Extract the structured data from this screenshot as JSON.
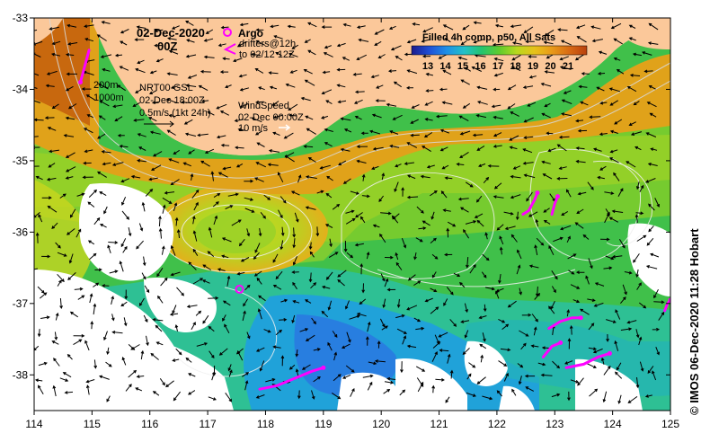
{
  "map": {
    "date_line1": "02-Dec-2020",
    "date_line2": "00Z",
    "legend": {
      "argo_label": "Argo",
      "drifters_line1": "drifters@12h",
      "drifters_line2": "to 02/12 12Z",
      "argo_color": "#ff00ff",
      "drifter_color": "#ff00ff"
    },
    "colorbar": {
      "title": "Filled 4h comp, p50, All Sats",
      "ticks": [
        "13",
        "14",
        "15",
        "16",
        "17",
        "18",
        "19",
        "20",
        "21"
      ],
      "colors": [
        "#1a1a8c",
        "#1f4fd6",
        "#1f8fe6",
        "#21c0c8",
        "#24c46e",
        "#5fcc2e",
        "#b8d81e",
        "#e6c21a",
        "#e89a18",
        "#d86a14",
        "#b8400e"
      ]
    },
    "contours": {
      "label_200": "200m",
      "label_1000": "1000m"
    },
    "gsl": {
      "line1": "NRT00 GSL",
      "line2": "02-Dec 18:00Z",
      "line3": "0.5m/s (1kt 24h)"
    },
    "wind": {
      "line1": "WindSpeed",
      "line2": "02-Dec 00:00Z",
      "line3": "10 m/s"
    },
    "land_color": "#fbc89a",
    "credit": "© IMOS 06-Dec-2020 11:28 Hobart"
  },
  "chart_data": {
    "type": "map",
    "xaxis": {
      "range": [
        114,
        125
      ],
      "ticks": [
        "114",
        "115",
        "116",
        "117",
        "118",
        "119",
        "120",
        "121",
        "122",
        "123",
        "124",
        "125"
      ]
    },
    "yaxis": {
      "range": [
        -38.5,
        -33
      ],
      "ticks": [
        "-33",
        "-34",
        "-35",
        "-36",
        "-37",
        "-38"
      ]
    },
    "argo_floats": [
      {
        "lon": 117.55,
        "lat": -36.8
      }
    ],
    "drifter_tracks": [
      {
        "points": [
          [
            114.95,
            -33.45
          ],
          [
            114.9,
            -33.6
          ],
          [
            114.85,
            -33.75
          ],
          [
            114.8,
            -33.9
          ]
        ]
      },
      {
        "points": [
          [
            122.45,
            -35.75
          ],
          [
            122.55,
            -35.7
          ],
          [
            122.65,
            -35.55
          ],
          [
            122.7,
            -35.45
          ]
        ]
      },
      {
        "points": [
          [
            122.95,
            -35.75
          ],
          [
            123.0,
            -35.6
          ],
          [
            123.05,
            -35.5
          ]
        ]
      },
      {
        "points": [
          [
            122.9,
            -37.35
          ],
          [
            123.1,
            -37.25
          ],
          [
            123.3,
            -37.2
          ],
          [
            123.45,
            -37.2
          ]
        ]
      },
      {
        "points": [
          [
            122.8,
            -37.75
          ],
          [
            122.95,
            -37.6
          ],
          [
            123.1,
            -37.55
          ]
        ]
      },
      {
        "points": [
          [
            123.2,
            -37.9
          ],
          [
            123.5,
            -37.85
          ],
          [
            123.75,
            -37.75
          ],
          [
            123.95,
            -37.7
          ]
        ]
      },
      {
        "points": [
          [
            117.9,
            -38.2
          ],
          [
            118.2,
            -38.15
          ],
          [
            118.5,
            -38.05
          ],
          [
            118.8,
            -37.95
          ],
          [
            119.0,
            -37.9
          ]
        ]
      },
      {
        "points": [
          [
            124.9,
            -37.1
          ],
          [
            124.95,
            -37.0
          ],
          [
            125.0,
            -36.95
          ]
        ]
      }
    ]
  }
}
